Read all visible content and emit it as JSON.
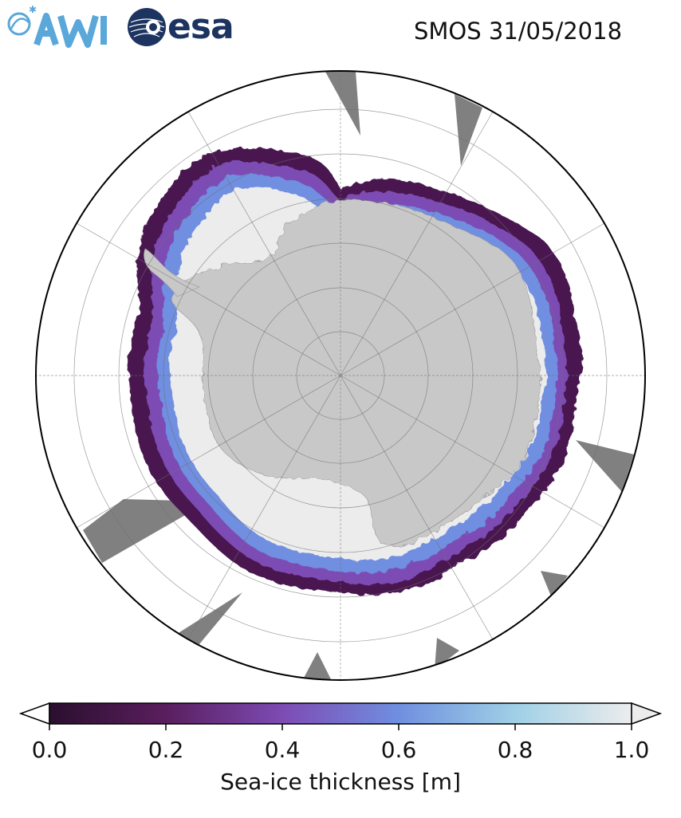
{
  "header": {
    "awi_logo": "AWI",
    "esa_logo": "esa",
    "map_title": "SMOS 31/05/2018"
  },
  "map": {
    "projection": "south-polar-stereographic",
    "land_color": "#c8c8c8",
    "thick_ice_color": "#ececec",
    "no_data_color": "#808080",
    "graticule": true
  },
  "colorbar": {
    "label": "Sea-ice thickness [m]",
    "ticks": [
      "0.0",
      "0.2",
      "0.4",
      "0.6",
      "0.8",
      "1.0"
    ],
    "range": [
      0.0,
      1.0
    ],
    "colormap": [
      "#2a0f2e",
      "#5a1e5e",
      "#7d4bb4",
      "#6f8fe0",
      "#9fd0e6",
      "#ececec"
    ]
  }
}
